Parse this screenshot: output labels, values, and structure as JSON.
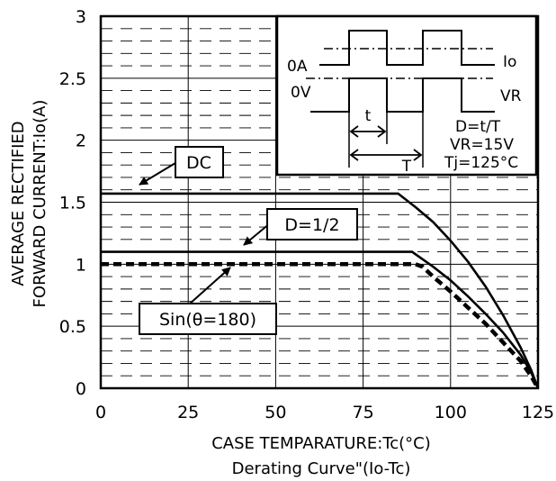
{
  "chart_data": {
    "type": "line",
    "title": "",
    "caption": "Derating Curve\"(Io-Tc)",
    "xlabel": "CASE TEMPARATURE:Tc(°C)",
    "ylabel_line1": "AVERAGE RECTIFIED",
    "ylabel_line2": "FORWARD CURRENT:Io(A)",
    "xlim": [
      0,
      125
    ],
    "ylim": [
      0,
      3
    ],
    "x_ticks": [
      "0",
      "25",
      "50",
      "75",
      "100",
      "125"
    ],
    "y_ticks": [
      "0",
      "0.5",
      "1",
      "1.5",
      "2",
      "2.5",
      "3"
    ],
    "grid": true,
    "series": [
      {
        "name": "DC",
        "style": "solid",
        "x": [
          0,
          85,
          90,
          95,
          100,
          105,
          110,
          115,
          120,
          123,
          125
        ],
        "y": [
          1.57,
          1.57,
          1.46,
          1.34,
          1.19,
          1.02,
          0.82,
          0.59,
          0.33,
          0.15,
          0
        ]
      },
      {
        "name": "D=1/2",
        "style": "solid",
        "x": [
          0,
          89,
          95,
          100,
          105,
          110,
          115,
          120,
          123,
          125
        ],
        "y": [
          1.1,
          1.1,
          0.98,
          0.87,
          0.74,
          0.6,
          0.45,
          0.27,
          0.13,
          0
        ]
      },
      {
        "name": "Sin(θ=180)",
        "style": "dashed",
        "x": [
          0,
          90,
          92,
          95,
          100,
          105,
          110,
          115,
          120,
          123,
          125
        ],
        "y": [
          1.0,
          1.0,
          0.98,
          0.9,
          0.78,
          0.65,
          0.52,
          0.37,
          0.22,
          0.1,
          0
        ]
      }
    ],
    "callouts": [
      "DC",
      "D=1/2",
      "Sin(θ=180)"
    ]
  },
  "inset": {
    "label_0A": "0A",
    "label_io": "Io",
    "label_0V": "0V",
    "label_vr": "VR",
    "label_t": "t",
    "label_T": "T",
    "eq_d": "D=t/T",
    "eq_vr": "VR=15V",
    "eq_tj": "Tj=125°C"
  }
}
